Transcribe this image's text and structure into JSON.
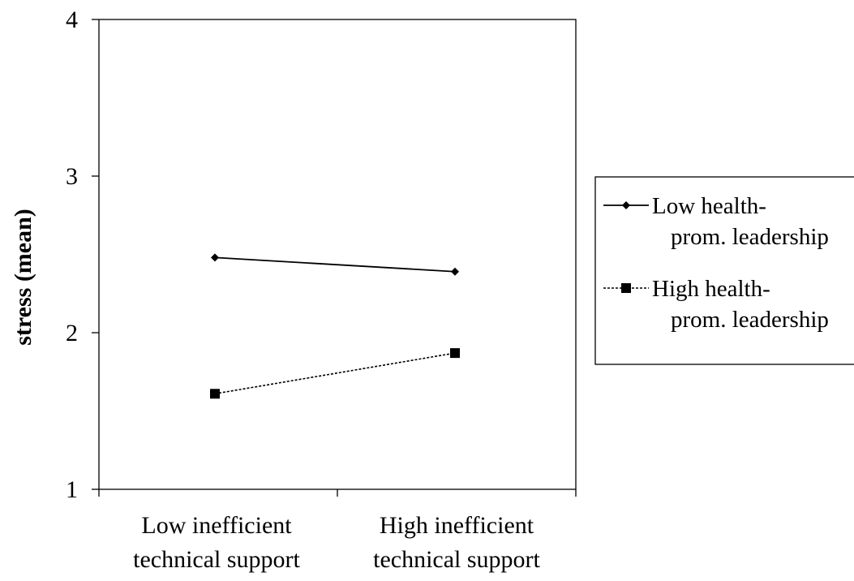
{
  "chart_data": {
    "type": "line",
    "title": "",
    "xlabel": "",
    "ylabel": "stress (mean)",
    "ylim": [
      1,
      4
    ],
    "yticks": [
      1,
      2,
      3,
      4
    ],
    "grid": false,
    "legend_position": "right",
    "categories": [
      [
        "Low inefficient",
        "technical support"
      ],
      [
        "High inefficient",
        "technical support"
      ]
    ],
    "series": [
      {
        "name": [
          "Low health-",
          "prom. leadership"
        ],
        "values": [
          2.48,
          2.39
        ],
        "line_style": "solid",
        "marker": "diamond",
        "color": "#000000"
      },
      {
        "name": [
          "High health-",
          "prom. leadership"
        ],
        "values": [
          1.61,
          1.87
        ],
        "line_style": "dotted",
        "marker": "square",
        "color": "#000000"
      }
    ]
  }
}
